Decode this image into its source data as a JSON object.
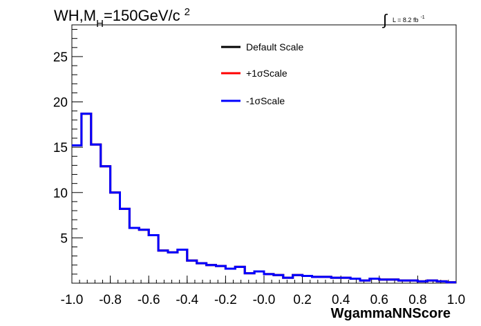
{
  "title": {
    "main": "WH,M",
    "sub": "H",
    "rest": "=150GeV/c",
    "sup": "2"
  },
  "lumi": {
    "integral": "∫",
    "text": "L = 8.2 fb",
    "sup": "-1"
  },
  "chart_data": {
    "type": "line",
    "xlabel": "WgammaNNScore",
    "ylabel": "",
    "xlim": [
      -1.0,
      1.0
    ],
    "ylim": [
      0,
      28.5
    ],
    "x_ticks": [
      "-1.0",
      "-0.8",
      "-0.6",
      "-0.4",
      "-0.2",
      "-0.0",
      "0.2",
      "0.4",
      "0.6",
      "0.8",
      "1.0"
    ],
    "y_ticks": [
      "5",
      "10",
      "15",
      "20",
      "25"
    ],
    "y_tick_values": [
      5,
      10,
      15,
      20,
      25
    ],
    "bin_edges": [
      -1.0,
      -0.95,
      -0.9,
      -0.85,
      -0.8,
      -0.75,
      -0.7,
      -0.65,
      -0.6,
      -0.55,
      -0.5,
      -0.45,
      -0.4,
      -0.35,
      -0.3,
      -0.25,
      -0.2,
      -0.15,
      -0.1,
      -0.05,
      0.0,
      0.05,
      0.1,
      0.15,
      0.2,
      0.25,
      0.3,
      0.35,
      0.4,
      0.45,
      0.5,
      0.55,
      0.6,
      0.65,
      0.7,
      0.75,
      0.8,
      0.85,
      0.9,
      0.95,
      1.0
    ],
    "legend_position": "top-center",
    "series": [
      {
        "name": "Default Scale",
        "color": "#000000",
        "values": [
          15.2,
          18.7,
          15.3,
          12.9,
          10.0,
          8.2,
          6.1,
          5.9,
          5.3,
          3.6,
          3.4,
          3.7,
          2.5,
          2.2,
          2.0,
          1.9,
          1.6,
          1.8,
          1.1,
          1.3,
          1.0,
          0.9,
          0.6,
          0.9,
          0.8,
          0.7,
          0.7,
          0.6,
          0.6,
          0.5,
          0.3,
          0.5,
          0.4,
          0.4,
          0.3,
          0.3,
          0.2,
          0.3,
          0.2,
          0.1
        ]
      },
      {
        "name": "+1σScale",
        "color": "#ff0000",
        "values": [
          15.2,
          18.7,
          15.3,
          12.9,
          10.0,
          8.2,
          6.1,
          5.9,
          5.3,
          3.6,
          3.4,
          3.7,
          2.5,
          2.2,
          2.0,
          1.9,
          1.6,
          1.8,
          1.1,
          1.3,
          1.0,
          0.9,
          0.6,
          0.9,
          0.8,
          0.7,
          0.7,
          0.6,
          0.6,
          0.5,
          0.3,
          0.5,
          0.4,
          0.4,
          0.3,
          0.3,
          0.2,
          0.3,
          0.2,
          0.1
        ]
      },
      {
        "name": "-1σScale",
        "color": "#0000ff",
        "values": [
          15.2,
          18.7,
          15.3,
          12.9,
          10.0,
          8.2,
          6.1,
          5.9,
          5.3,
          3.6,
          3.4,
          3.7,
          2.5,
          2.2,
          2.0,
          1.9,
          1.6,
          1.8,
          1.1,
          1.3,
          1.0,
          0.9,
          0.6,
          0.9,
          0.8,
          0.7,
          0.7,
          0.6,
          0.6,
          0.5,
          0.3,
          0.5,
          0.4,
          0.4,
          0.3,
          0.3,
          0.2,
          0.3,
          0.2,
          0.1
        ]
      }
    ]
  }
}
